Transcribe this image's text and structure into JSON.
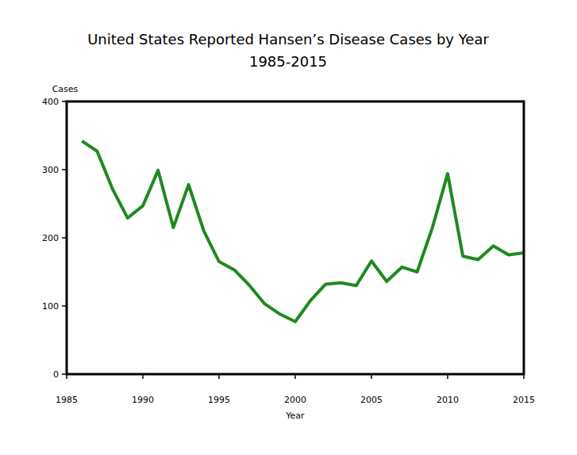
{
  "chart_data": {
    "type": "line",
    "title": "United States Reported Hansen’s Disease Cases by Year",
    "subtitle": "1985-2015",
    "x_label": "Year",
    "y_label": "Cases",
    "x": [
      1986,
      1987,
      1988,
      1989,
      1990,
      1991,
      1992,
      1993,
      1994,
      1995,
      1996,
      1997,
      1998,
      1999,
      2000,
      2001,
      2002,
      2003,
      2004,
      2005,
      2006,
      2007,
      2008,
      2009,
      2010,
      2011,
      2012,
      2013,
      2014,
      2015
    ],
    "values": [
      342,
      327,
      272,
      229,
      247,
      299,
      215,
      278,
      210,
      165,
      153,
      130,
      103,
      88,
      77,
      108,
      132,
      134,
      130,
      166,
      136,
      157,
      150,
      215,
      294,
      173,
      168,
      188,
      175,
      178
    ],
    "color": "#1f8a1f",
    "xlim": [
      1985,
      2015
    ],
    "xticks": [
      1985,
      1990,
      1995,
      2000,
      2005,
      2010,
      2015
    ],
    "ylim": [
      0,
      400
    ],
    "yticks": [
      0,
      100,
      200,
      300,
      400
    ],
    "grid": false
  }
}
